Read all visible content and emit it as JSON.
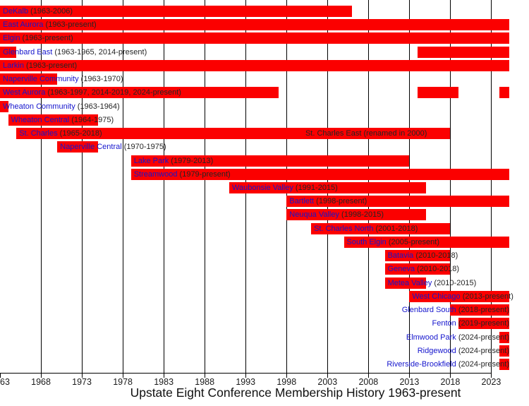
{
  "title": "Upstate Eight Conference Membership History 1963-present",
  "chart_data": {
    "type": "bar",
    "subtype": "timeline-gantt",
    "unit": "year",
    "x_domain": [
      1963,
      2025.2
    ],
    "present_value": 2025.2,
    "grid": true,
    "colors": {
      "bar": "#fb0000",
      "link": "#1515cd",
      "text": "#242424",
      "grid": "#000000"
    },
    "axis": {
      "ticks": [
        {
          "label": "63",
          "year": 1963
        },
        {
          "label": "1968",
          "year": 1968
        },
        {
          "label": "1973",
          "year": 1973
        },
        {
          "label": "1978",
          "year": 1978
        },
        {
          "label": "1983",
          "year": 1983
        },
        {
          "label": "1988",
          "year": 1988
        },
        {
          "label": "1993",
          "year": 1993
        },
        {
          "label": "1998",
          "year": 1998
        },
        {
          "label": "2003",
          "year": 2003
        },
        {
          "label": "2008",
          "year": 2008
        },
        {
          "label": "2013",
          "year": 2013
        },
        {
          "label": "2018",
          "year": 2018
        },
        {
          "label": "2023",
          "year": 2023
        }
      ]
    },
    "rows": [
      {
        "name": "DeKalb",
        "dates": "(1963-2006)",
        "segments": [
          [
            1963,
            2006
          ]
        ]
      },
      {
        "name": "East Aurora",
        "dates": "(1963-present)",
        "segments": [
          [
            1963,
            "present"
          ]
        ]
      },
      {
        "name": "Elgin",
        "dates": "(1963-present)",
        "segments": [
          [
            1963,
            "present"
          ]
        ]
      },
      {
        "name": "Glenbard East",
        "dates": "(1963-1965, 2014-present)",
        "segments": [
          [
            1963,
            1965
          ],
          [
            2014,
            "present"
          ]
        ]
      },
      {
        "name": "Larkin",
        "dates": "(1963-present)",
        "segments": [
          [
            1963,
            "present"
          ]
        ]
      },
      {
        "name": "Naperville Community",
        "dates": "(1963-1970)",
        "segments": [
          [
            1963,
            1970
          ]
        ]
      },
      {
        "name": "West Aurora",
        "dates": "(1963-1997, 2014-2019, 2024-present)",
        "segments": [
          [
            1963,
            1997
          ],
          [
            2014,
            2019
          ],
          [
            2024,
            "present"
          ]
        ]
      },
      {
        "name": "Wheaton Community",
        "dates": "(1963-1964)",
        "segments": [
          [
            1963,
            1964
          ]
        ]
      },
      {
        "name": "Wheaton Central",
        "dates": "(1964-1975)",
        "segments": [
          [
            1964,
            1975
          ]
        ]
      },
      {
        "name": "St. Charles",
        "dates": "(1965-2018)",
        "segments": [
          [
            1965,
            2018
          ]
        ],
        "annotation": {
          "text": "St. Charles East (renamed in 2000)",
          "x_year": 2000.3
        }
      },
      {
        "name": "Naperville Central",
        "dates": "(1970-1975)",
        "segments": [
          [
            1970,
            1975
          ]
        ]
      },
      {
        "name": "Lake Park",
        "dates": "(1979-2013)",
        "segments": [
          [
            1979,
            2013
          ]
        ]
      },
      {
        "name": "Streamwood",
        "dates": "(1979-present)",
        "segments": [
          [
            1979,
            "present"
          ]
        ]
      },
      {
        "name": "Waubonsie Valley",
        "dates": "(1991-2015)",
        "segments": [
          [
            1991,
            2015
          ]
        ]
      },
      {
        "name": "Bartlett",
        "dates": "(1998-present)",
        "segments": [
          [
            1998,
            "present"
          ]
        ]
      },
      {
        "name": "Neuqua Valley",
        "dates": "(1998-2015)",
        "segments": [
          [
            1998,
            2015
          ]
        ]
      },
      {
        "name": "St. Charles North",
        "dates": "(2001-2018)",
        "segments": [
          [
            2001,
            2018
          ]
        ]
      },
      {
        "name": "South Elgin",
        "dates": "(2005-present)",
        "segments": [
          [
            2005,
            "present"
          ]
        ]
      },
      {
        "name": "Batavia",
        "dates": "(2010-2018)",
        "segments": [
          [
            2010,
            2018
          ]
        ]
      },
      {
        "name": "Geneva",
        "dates": "(2010-2018)",
        "segments": [
          [
            2010,
            2018
          ]
        ]
      },
      {
        "name": "Metea Valley",
        "dates": "(2010-2015)",
        "segments": [
          [
            2010,
            2015
          ]
        ]
      },
      {
        "name": "West Chicago",
        "dates": "(2013-present)",
        "segments": [
          [
            2013,
            "present"
          ]
        ]
      },
      {
        "name": "Glenbard South",
        "dates": "(2018-present)",
        "segments": [
          [
            2018,
            "present"
          ]
        ],
        "label_align": "right"
      },
      {
        "name": "Fenton",
        "dates": "(2019-present)",
        "segments": [
          [
            2019,
            "present"
          ]
        ],
        "label_align": "right"
      },
      {
        "name": "Elmwood Park",
        "dates": "(2024-present)",
        "segments": [
          [
            2024,
            "present"
          ]
        ],
        "label_align": "right"
      },
      {
        "name": "Ridgewood",
        "dates": "(2024-present)",
        "segments": [
          [
            2024,
            "present"
          ]
        ],
        "label_align": "right"
      },
      {
        "name": "Riverside-Brookfield",
        "dates": "(2024-present)",
        "segments": [
          [
            2024,
            "present"
          ]
        ],
        "label_align": "right"
      }
    ]
  }
}
